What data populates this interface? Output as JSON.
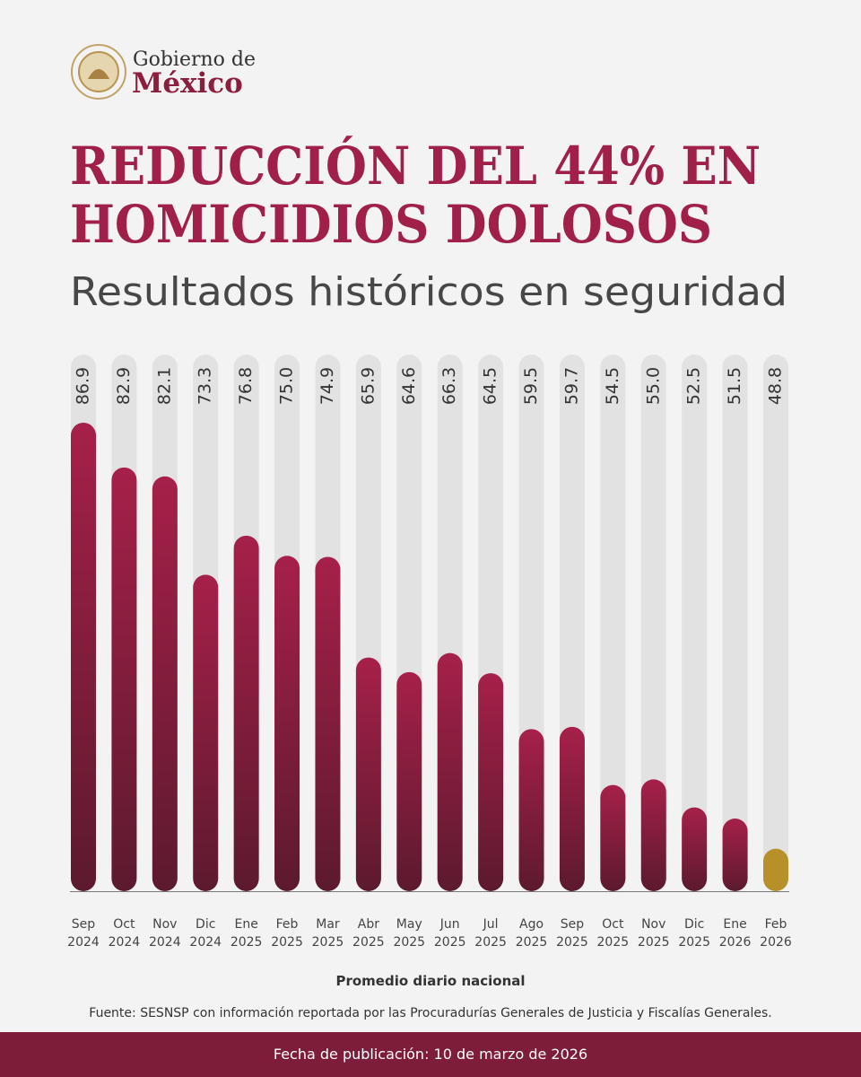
{
  "header": {
    "gov_line1": "Gobierno de",
    "gov_line2": "México"
  },
  "chart_data": {
    "type": "bar",
    "title": [
      "REDUCCIÓN DEL 44% EN",
      "HOMICIDIOS DOLOSOS"
    ],
    "subtitle": "Resultados históricos en seguridad",
    "categories": [
      "Sep 2024",
      "Oct 2024",
      "Nov 2024",
      "Dic 2024",
      "Ene 2025",
      "Feb 2025",
      "Mar 2025",
      "Abr 2025",
      "May 2025",
      "Jun 2025",
      "Jul 2025",
      "Ago 2025",
      "Sep 2025",
      "Oct 2025",
      "Nov 2025",
      "Dic 2025",
      "Ene 2026",
      "Feb 2026"
    ],
    "values": [
      86.9,
      82.9,
      82.1,
      73.3,
      76.8,
      75,
      74.9,
      65.9,
      64.6,
      66.3,
      64.5,
      59.5,
      59.7,
      54.5,
      55,
      52.5,
      51.5,
      48.8
    ],
    "value_labels": [
      "86.9",
      "82.9",
      "82.1",
      "73.3",
      "76.8",
      "75.0",
      "74.9",
      "65.9",
      "64.6",
      "66.3",
      "64.5",
      "59.5",
      "59.7",
      "54.5",
      "55.0",
      "52.5",
      "51.5",
      "48.8"
    ],
    "colors": [
      "#a31f45",
      "#a31f45",
      "#a31f45",
      "#a31f45",
      "#a31f45",
      "#a31f45",
      "#a31f45",
      "#a31f45",
      "#a31f45",
      "#a31f45",
      "#a31f45",
      "#a31f45",
      "#a31f45",
      "#a31f45",
      "#a31f45",
      "#a31f45",
      "#a31f45",
      "#b8902a"
    ],
    "ylim": [
      45,
      93
    ],
    "x_label": "Promedio diario nacional",
    "source": "Fuente: SESNSP con información reportada por las Procuradurías Generales de Justicia y Fiscalías Generales."
  },
  "footer": {
    "publication": "Fecha de publicación: 10 de marzo de 2026"
  }
}
